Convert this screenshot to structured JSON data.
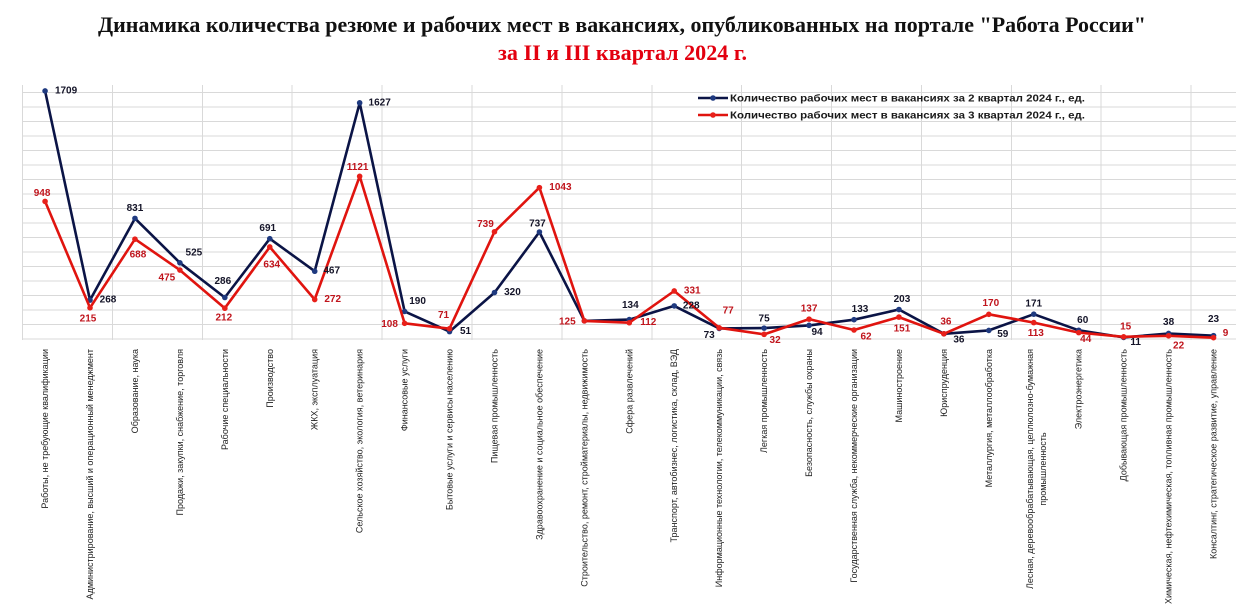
{
  "chart_data": {
    "type": "line",
    "title": "Динамика количества резюме и рабочих мест в вакансиях, опубликованных на портале \"Работа России\"",
    "subtitle": "за II и III квартал 2024 г.",
    "xlabel": "",
    "ylabel": "",
    "ylim": [
      0,
      1750
    ],
    "grid": true,
    "grid_step": 100,
    "legend_position": "top-right",
    "categories": [
      "Работы, не требующие квалификации",
      "Администрирование, высший и операционный менеджмент",
      "Образование, наука",
      "Продажи, закупки, снабжение, торговля",
      "Рабочие специальности",
      "Производство",
      "ЖКХ, эксплуатация",
      "Сельское хозяйство, экология, ветеринария",
      "Финансовые услуги",
      "Бытовые услуги и сервисы населению",
      "Пищевая промышленность",
      "Здравоохранение и социальное обеспечение",
      "Строительство, ремонт, стройматериалы, недвижимость",
      "Сфера развлечений",
      "Транспорт, автобизнес, логистика, склад, ВЭД",
      "Информационные технологии, телекоммуникации, связь",
      "Легкая промышленность",
      "Безопасность, службы охраны",
      "Государственная служба, некоммерческие организации",
      "Машиностроение",
      "Юриспруденция",
      "Металлургия, металлообработка",
      "Лесная, деревообрабатывающая, целлюлозно-бумажная промышленность",
      "Электроэнергетика",
      "Добывающая промышленность",
      "Химическая, нефтехимическая, топливная промышленность",
      "Консалтинг, стратегическое развитие, управление"
    ],
    "series": [
      {
        "name": "Количество рабочих мест в вакансиях за 2 квартал 2024 г., ед.",
        "line_color": "#0b1446",
        "marker_color": "#1f3a80",
        "label_color": "#141428",
        "values": [
          1709,
          268,
          831,
          525,
          286,
          691,
          467,
          1627,
          190,
          51,
          320,
          737,
          125,
          134,
          228,
          73,
          75,
          94,
          133,
          203,
          36,
          59,
          171,
          60,
          11,
          38,
          23
        ],
        "labels_hidden": [
          12
        ]
      },
      {
        "name": "Количество рабочих мест в вакансиях за 3 квартал 2024 г., ед.",
        "line_color": "#e0140f",
        "marker_color": "#e8201a",
        "label_color": "#c0141c",
        "values": [
          948,
          215,
          688,
          475,
          212,
          634,
          272,
          1121,
          108,
          71,
          739,
          1043,
          125,
          112,
          331,
          77,
          32,
          137,
          62,
          151,
          36,
          170,
          113,
          44,
          15,
          22,
          9
        ],
        "labels_hidden": []
      }
    ]
  }
}
